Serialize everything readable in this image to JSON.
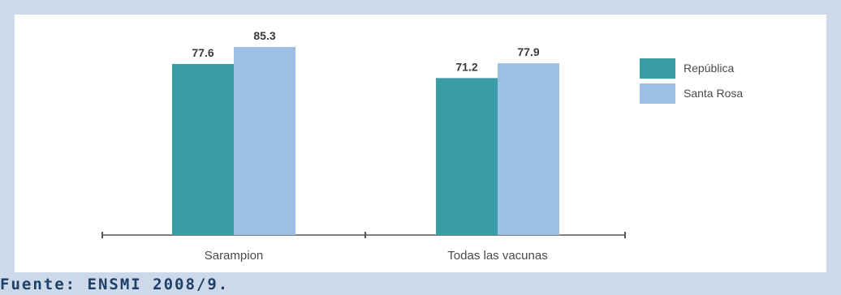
{
  "chart_data": {
    "type": "bar",
    "categories": [
      "Sarampion",
      "Todas las vacunas"
    ],
    "series": [
      {
        "name": "República",
        "values": [
          77.6,
          71.2
        ],
        "color": "#3a9ca6"
      },
      {
        "name": "Santa Rosa",
        "values": [
          85.3,
          77.9
        ],
        "color": "#9dbfe4"
      }
    ],
    "value_labels": [
      [
        "77.6",
        "71.2"
      ],
      [
        "85.3",
        "77.9"
      ]
    ],
    "ylim": [
      0,
      100
    ],
    "legend": "top-right",
    "grid": false
  },
  "source": "Fuente: ENSMI 2008/9."
}
